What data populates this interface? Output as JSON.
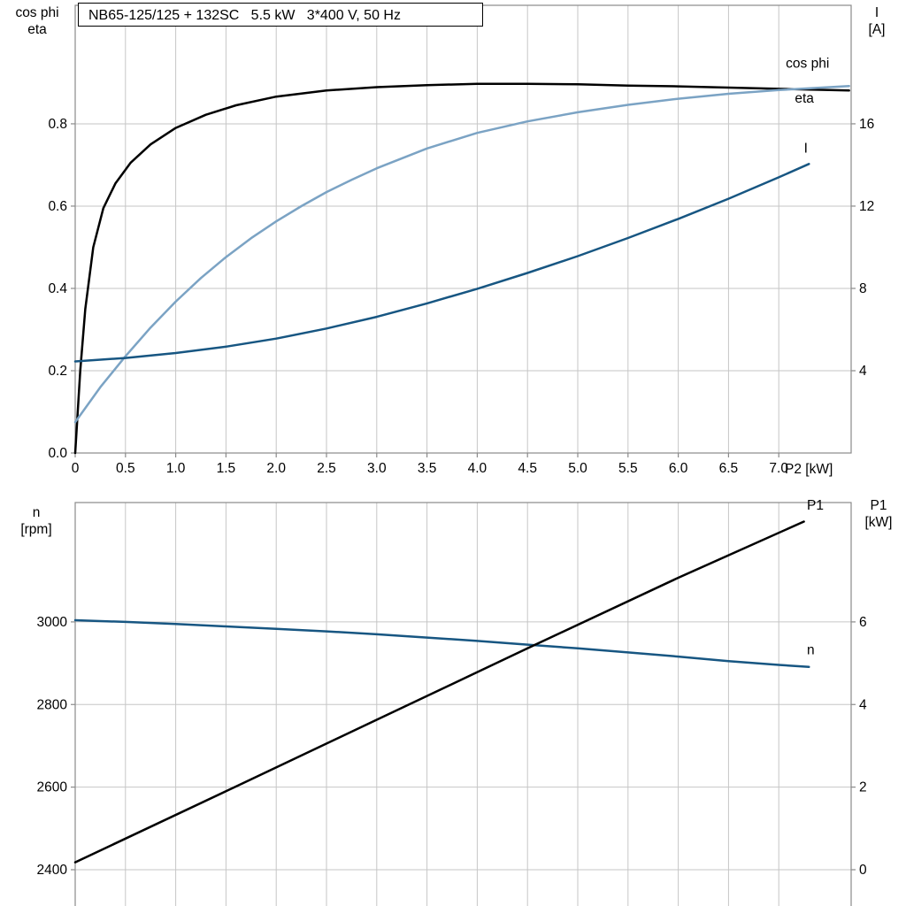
{
  "page": {
    "background": "#ffffff",
    "grid_color": "#c6c6c6",
    "frame_color": "#8a8a8a",
    "text_color": "#000000"
  },
  "title_box": {
    "text": "NB65-125/125 + 132SC   5.5 kW   3*400 V, 50 Hz"
  },
  "chart_data": [
    {
      "type": "line",
      "name": "motor-efficiency-current-chart",
      "title": "NB65-125/125 + 132SC   5.5 kW   3*400 V, 50 Hz",
      "grid": true,
      "x_axis": {
        "label": "P2 [kW]",
        "range": [
          0,
          7.72
        ],
        "ticks": [
          0,
          0.5,
          1,
          1.5,
          2,
          2.5,
          3,
          3.5,
          4,
          4.5,
          5,
          5.5,
          6,
          6.5,
          7
        ],
        "tick_labels": [
          "0",
          "0.5",
          "1.0",
          "1.5",
          "2.0",
          "2.5",
          "3.0",
          "3.5",
          "4.0",
          "4.5",
          "5.0",
          "5.5",
          "6.0",
          "6.5",
          "7.0"
        ],
        "show_tick_labels": true
      },
      "left_axis": {
        "title_lines": [
          "cos phi",
          "eta"
        ],
        "range": [
          0,
          1.088
        ],
        "ticks": [
          0,
          0.2,
          0.4,
          0.6,
          0.8
        ],
        "tick_labels": [
          "0.0",
          "0.2",
          "0.4",
          "0.6",
          "0.8"
        ]
      },
      "right_axis": {
        "title_lines": [
          "I",
          "[A]"
        ],
        "range": [
          0,
          21.76
        ],
        "ticks": [
          4,
          8,
          12,
          16
        ],
        "tick_labels": [
          "4",
          "8",
          "12",
          "16"
        ]
      },
      "series": [
        {
          "id": "eta",
          "name": "eta",
          "axis": "left",
          "color": "#000000",
          "width": 2.5,
          "x": [
            0,
            0.05,
            0.1,
            0.18,
            0.28,
            0.4,
            0.55,
            0.75,
            1.0,
            1.3,
            1.6,
            2.0,
            2.5,
            3.0,
            3.5,
            4.0,
            4.5,
            5.0,
            5.5,
            6.0,
            6.5,
            7.0,
            7.7
          ],
          "y": [
            0,
            0.2,
            0.35,
            0.5,
            0.595,
            0.655,
            0.705,
            0.75,
            0.79,
            0.822,
            0.845,
            0.866,
            0.881,
            0.889,
            0.894,
            0.897,
            0.897,
            0.896,
            0.893,
            0.891,
            0.888,
            0.885,
            0.881
          ],
          "label": {
            "text": "eta",
            "x": 7.16,
            "v": 0.852
          }
        },
        {
          "id": "cos-phi",
          "name": "cos phi",
          "axis": "left",
          "color": "#7ba3c4",
          "width": 2.5,
          "x": [
            0,
            0.25,
            0.5,
            0.75,
            1.0,
            1.25,
            1.5,
            1.75,
            2.0,
            2.25,
            2.5,
            2.75,
            3.0,
            3.5,
            4.0,
            4.5,
            5.0,
            5.5,
            6.0,
            6.5,
            7.0,
            7.7
          ],
          "y": [
            0.075,
            0.16,
            0.235,
            0.305,
            0.368,
            0.425,
            0.476,
            0.522,
            0.563,
            0.6,
            0.634,
            0.664,
            0.692,
            0.74,
            0.778,
            0.806,
            0.828,
            0.846,
            0.861,
            0.873,
            0.882,
            0.892
          ],
          "label": {
            "text": "cos phi",
            "x": 7.07,
            "v": 0.936
          }
        },
        {
          "id": "current",
          "name": "I",
          "axis": "right",
          "color": "#175682",
          "width": 2.5,
          "x": [
            0,
            0.5,
            1.0,
            1.5,
            2.0,
            2.5,
            3.0,
            3.5,
            4.0,
            4.5,
            5.0,
            5.5,
            6.0,
            6.5,
            7.0,
            7.3
          ],
          "y": [
            4.45,
            4.62,
            4.86,
            5.17,
            5.56,
            6.05,
            6.62,
            7.27,
            7.98,
            8.75,
            9.57,
            10.45,
            11.38,
            12.36,
            13.4,
            14.05
          ],
          "label": {
            "text": "I",
            "x": 7.25,
            "v": 14.6
          }
        }
      ]
    },
    {
      "type": "line",
      "name": "speed-power-chart",
      "title": "",
      "grid": true,
      "x_axis": {
        "label": "",
        "range": [
          0,
          7.72
        ],
        "ticks": [
          0,
          0.5,
          1,
          1.5,
          2,
          2.5,
          3,
          3.5,
          4,
          4.5,
          5,
          5.5,
          6,
          6.5,
          7
        ],
        "tick_labels": [],
        "show_tick_labels": false
      },
      "left_axis": {
        "title_lines": [
          "n",
          "[rpm]"
        ],
        "range": [
          2295,
          3289
        ],
        "ticks": [
          2400,
          2600,
          2800,
          3000
        ],
        "tick_labels": [
          "2400",
          "2600",
          "2800",
          "3000"
        ]
      },
      "right_axis": {
        "title_lines": [
          "P1",
          "[kW]"
        ],
        "range": [
          -1.05,
          8.89
        ],
        "ticks": [
          0,
          2,
          4,
          6
        ],
        "tick_labels": [
          "0",
          "2",
          "4",
          "6"
        ]
      },
      "series": [
        {
          "id": "speed",
          "name": "n",
          "axis": "left",
          "color": "#175682",
          "width": 2.5,
          "x": [
            0,
            0.5,
            1,
            1.5,
            2,
            2.5,
            3,
            3.5,
            4,
            4.5,
            5,
            5.5,
            6,
            6.5,
            7,
            7.3
          ],
          "y": [
            3004,
            3000,
            2995,
            2989,
            2983,
            2977,
            2970,
            2962,
            2954,
            2945,
            2936,
            2926,
            2916,
            2905,
            2896,
            2891
          ],
          "label": {
            "text": "n",
            "x": 7.28,
            "v": 2922
          }
        },
        {
          "id": "input-power",
          "name": "P1",
          "axis": "right",
          "color": "#000000",
          "width": 2.5,
          "x": [
            0,
            1.5,
            3,
            4.5,
            6,
            7.25
          ],
          "y": [
            0.18,
            1.9,
            3.63,
            5.36,
            7.07,
            8.43
          ],
          "label": {
            "text": "P1",
            "x": 7.28,
            "v": 8.72
          }
        }
      ]
    }
  ]
}
